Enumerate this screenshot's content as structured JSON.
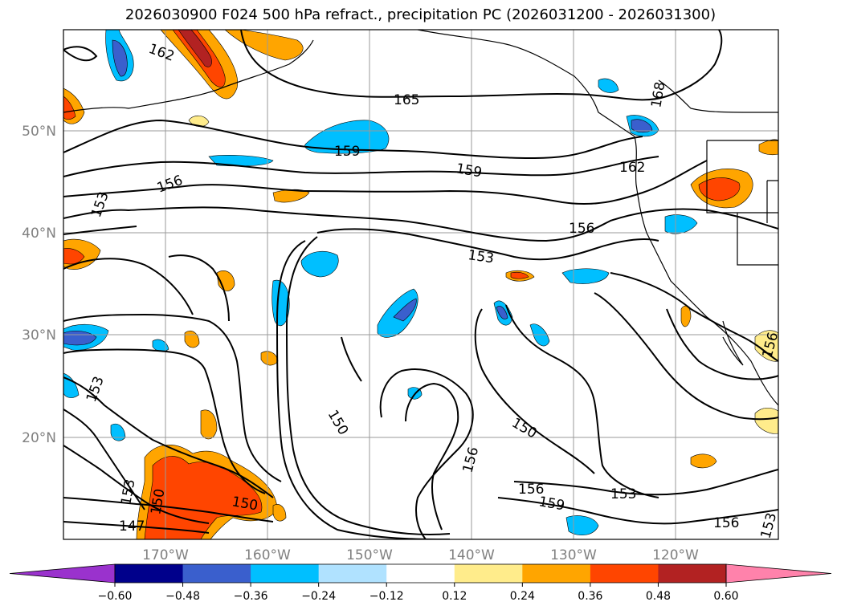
{
  "title": "2026030900 F024 500 hPa refract., precipitation PC (2026031200 - 2026031300)",
  "map": {
    "lon_labels": [
      "170°W",
      "160°W",
      "150°W",
      "140°W",
      "130°W",
      "120°W"
    ],
    "lat_labels": [
      "50°N",
      "40°N",
      "30°N",
      "20°N"
    ],
    "contour_labels": [
      "162",
      "165",
      "168",
      "159",
      "159",
      "162",
      "156",
      "153",
      "156",
      "153",
      "153",
      "150",
      "150",
      "156",
      "156",
      "153",
      "159",
      "153",
      "150",
      "150",
      "147",
      "156",
      "153",
      "156"
    ]
  },
  "colorbar": {
    "ticks": [
      "−0.60",
      "−0.48",
      "−0.36",
      "−0.24",
      "−0.12",
      "0.12",
      "0.24",
      "0.36",
      "0.48",
      "0.60"
    ],
    "colors": [
      "#9a32cd",
      "#00008b",
      "#3a5fcd",
      "#00bfff",
      "#b0e2ff",
      "#ffffff",
      "#ffec8b",
      "#ffa500",
      "#ff4500",
      "#b22222",
      "#ff82ab"
    ]
  }
}
